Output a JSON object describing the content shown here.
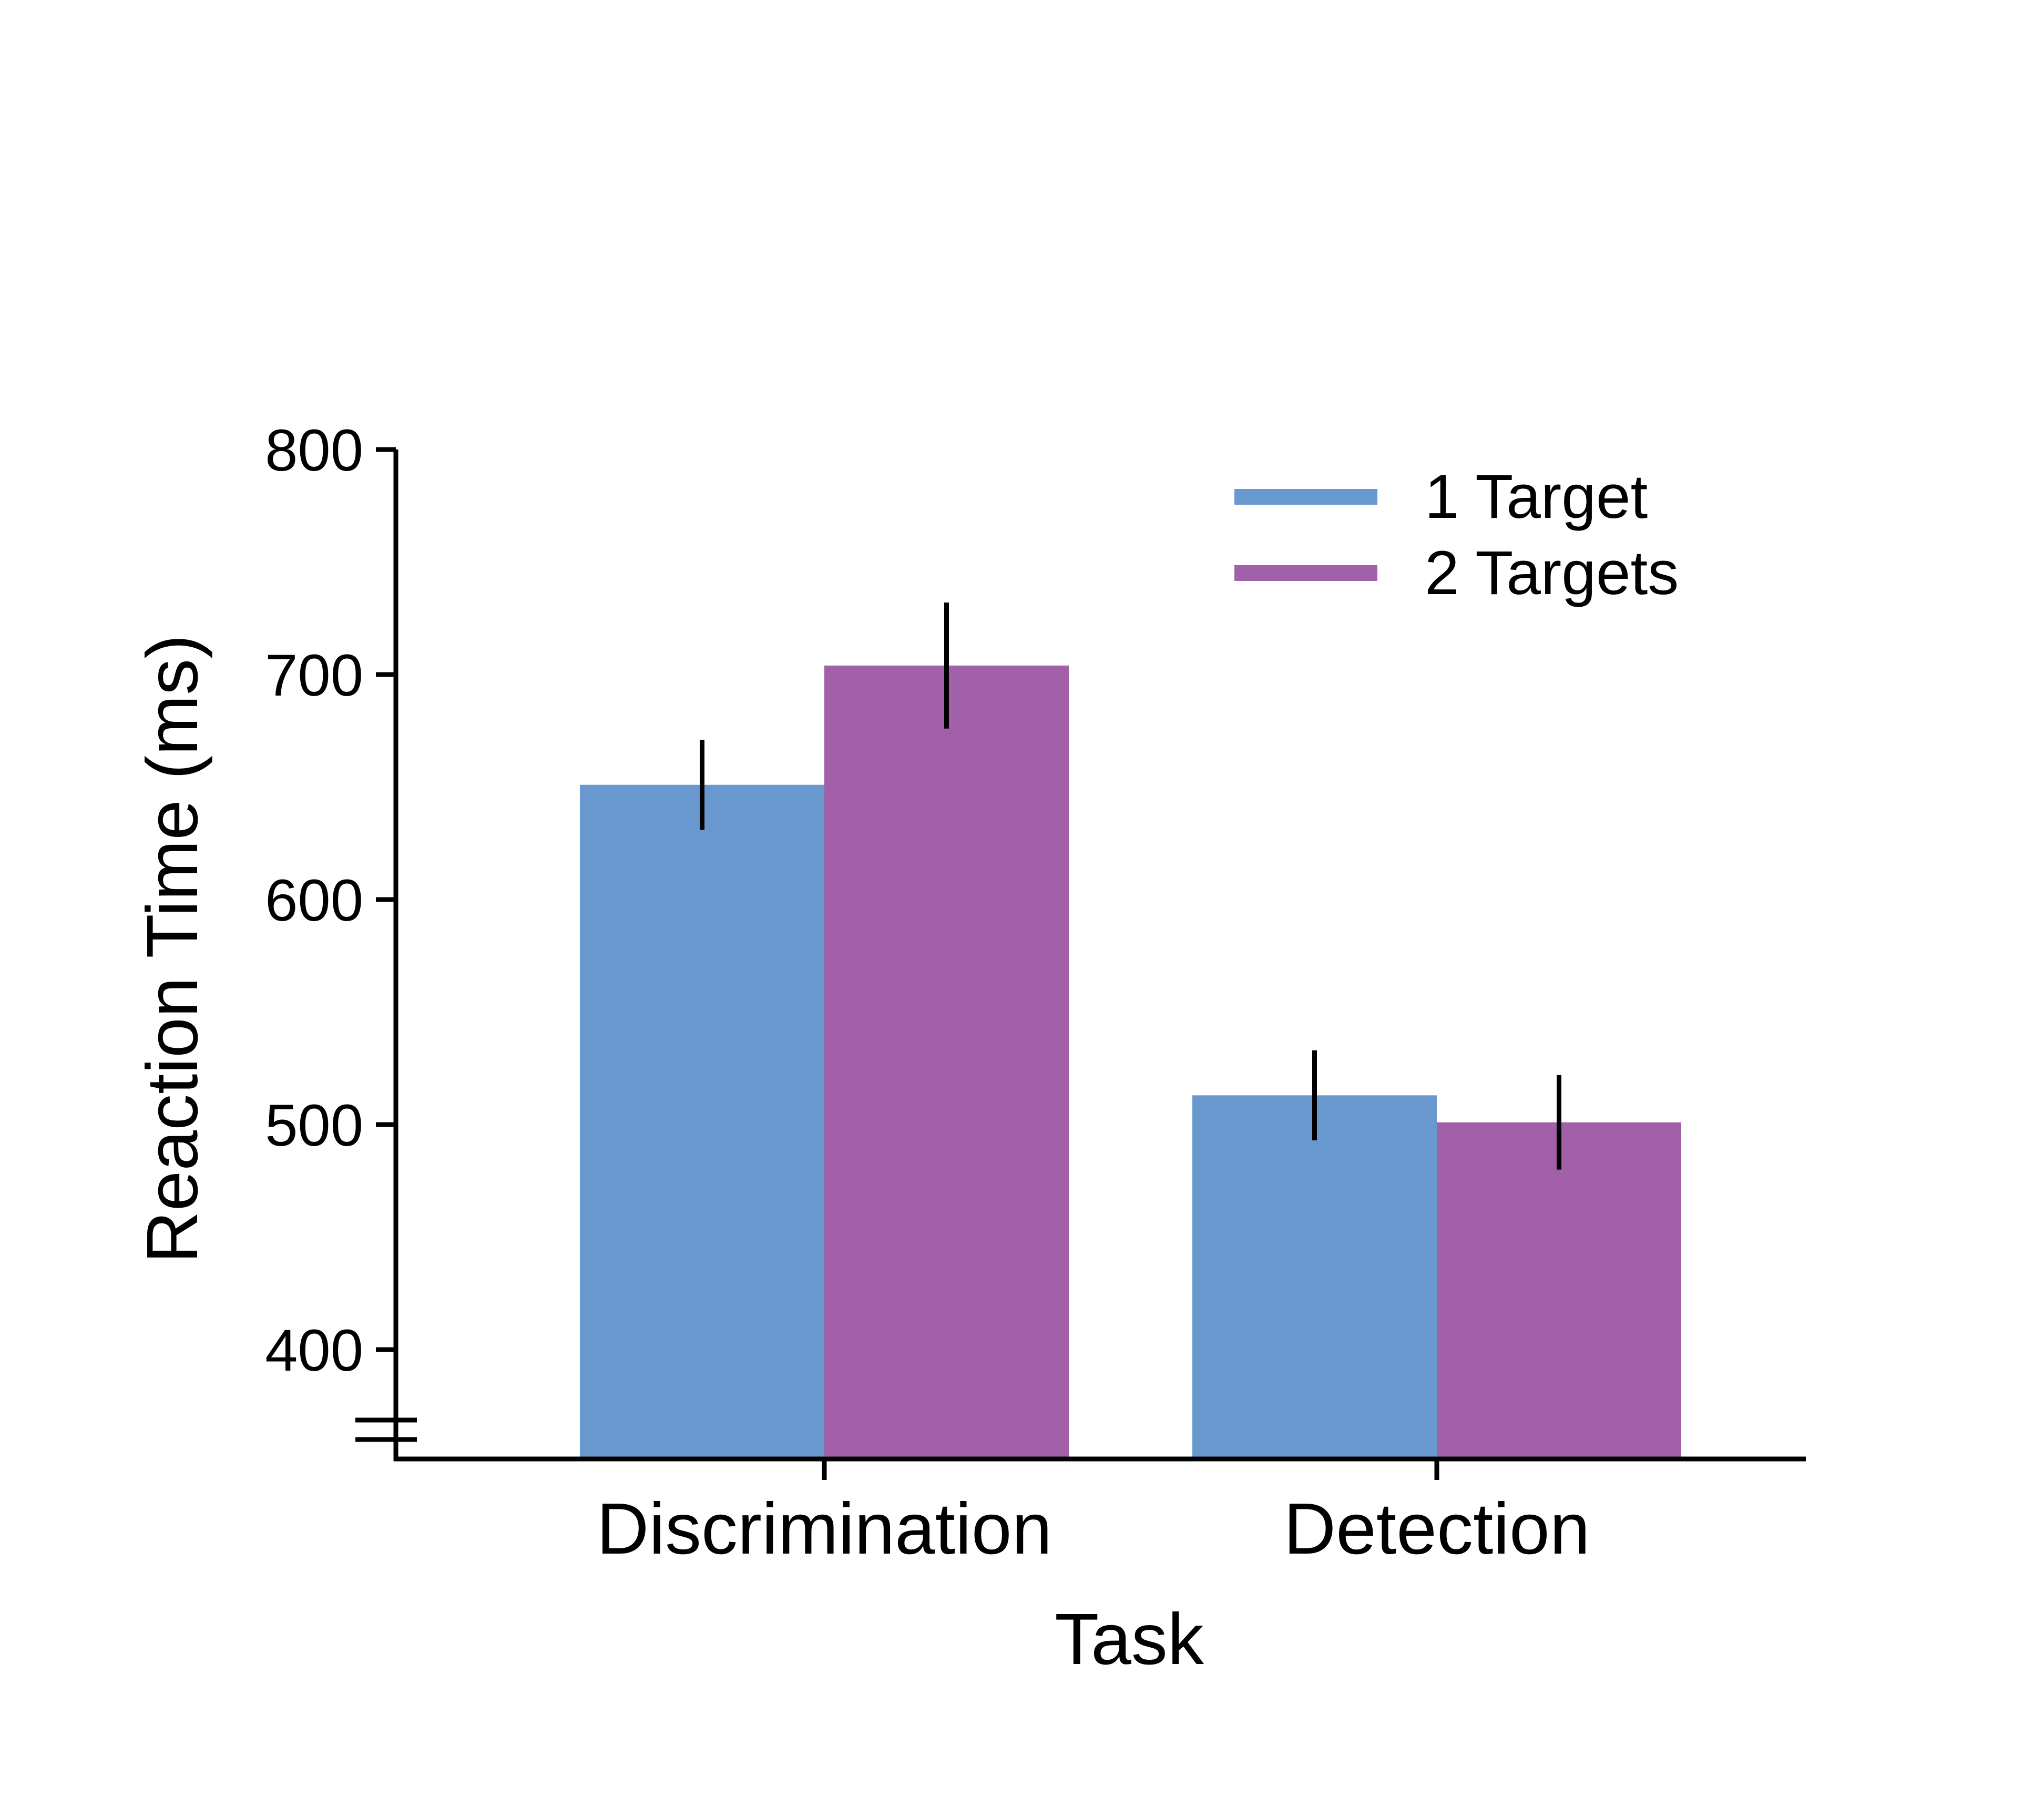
{
  "chart_data": {
    "type": "bar",
    "title": "",
    "xlabel": "Task",
    "ylabel": "Reaction Time (ms)",
    "categories": [
      "Discrimination",
      "Detection"
    ],
    "series": [
      {
        "name": "1 Target",
        "color": "#6998CF",
        "values": [
          651,
          513
        ],
        "error": [
          20,
          20
        ]
      },
      {
        "name": "2 Targets",
        "color": "#A160A7",
        "values": [
          704,
          501
        ],
        "error": [
          28,
          21
        ]
      }
    ],
    "ylim": [
      350,
      800
    ],
    "yticks": [
      400,
      500,
      600,
      700,
      800
    ],
    "ytick_labels": [
      "400",
      "500",
      "600",
      "700",
      "800"
    ],
    "axis_break": true,
    "grid": false,
    "legend_position": "top-right"
  }
}
